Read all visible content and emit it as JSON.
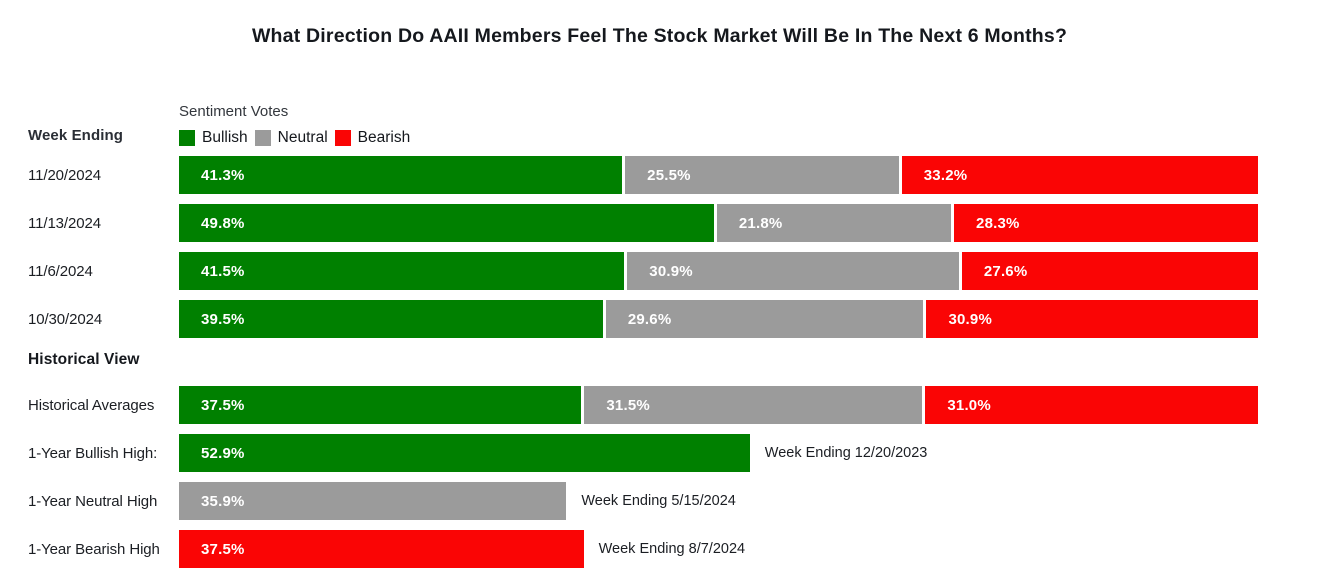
{
  "title": "What Direction Do AAII Members Feel The Stock Market Will Be In The Next 6 Months?",
  "left_header": "Week Ending",
  "section_header": "Historical View",
  "legend": {
    "title": "Sentiment Votes",
    "items": [
      {
        "label": "Bullish",
        "color": "#008000"
      },
      {
        "label": "Neutral",
        "color": "#9b9b9b"
      },
      {
        "label": "Bearish",
        "color": "#fa0505"
      }
    ]
  },
  "chart_data": {
    "type": "bar",
    "orientation": "horizontal",
    "stacked": true,
    "xlim": [
      0,
      100
    ],
    "value_unit": "%",
    "series_names": [
      "Bullish",
      "Neutral",
      "Bearish"
    ],
    "series_colors": {
      "Bullish": "#008000",
      "Neutral": "#9b9b9b",
      "Bearish": "#fa0505"
    },
    "weekly_rows": [
      {
        "label": "11/20/2024",
        "segments": [
          {
            "series": "Bullish",
            "value": 41.3
          },
          {
            "series": "Neutral",
            "value": 25.5
          },
          {
            "series": "Bearish",
            "value": 33.2
          }
        ]
      },
      {
        "label": "11/13/2024",
        "segments": [
          {
            "series": "Bullish",
            "value": 49.8
          },
          {
            "series": "Neutral",
            "value": 21.8
          },
          {
            "series": "Bearish",
            "value": 28.3
          }
        ]
      },
      {
        "label": "11/6/2024",
        "segments": [
          {
            "series": "Bullish",
            "value": 41.5
          },
          {
            "series": "Neutral",
            "value": 30.9
          },
          {
            "series": "Bearish",
            "value": 27.6
          }
        ]
      },
      {
        "label": "10/30/2024",
        "segments": [
          {
            "series": "Bullish",
            "value": 39.5
          },
          {
            "series": "Neutral",
            "value": 29.6
          },
          {
            "series": "Bearish",
            "value": 30.9
          }
        ]
      }
    ],
    "historical_rows": [
      {
        "label": "Historical Averages",
        "segments": [
          {
            "series": "Bullish",
            "value": 37.5
          },
          {
            "series": "Neutral",
            "value": 31.5
          },
          {
            "series": "Bearish",
            "value": 31.0
          }
        ]
      },
      {
        "label": "1-Year Bullish High:",
        "segments": [
          {
            "series": "Bullish",
            "value": 52.9
          }
        ],
        "annotation": "Week Ending 12/20/2023"
      },
      {
        "label": "1-Year Neutral High",
        "segments": [
          {
            "series": "Neutral",
            "value": 35.9
          }
        ],
        "annotation": "Week Ending 5/15/2024"
      },
      {
        "label": "1-Year Bearish High",
        "segments": [
          {
            "series": "Bearish",
            "value": 37.5
          }
        ],
        "annotation": "Week Ending 8/7/2024"
      }
    ]
  }
}
